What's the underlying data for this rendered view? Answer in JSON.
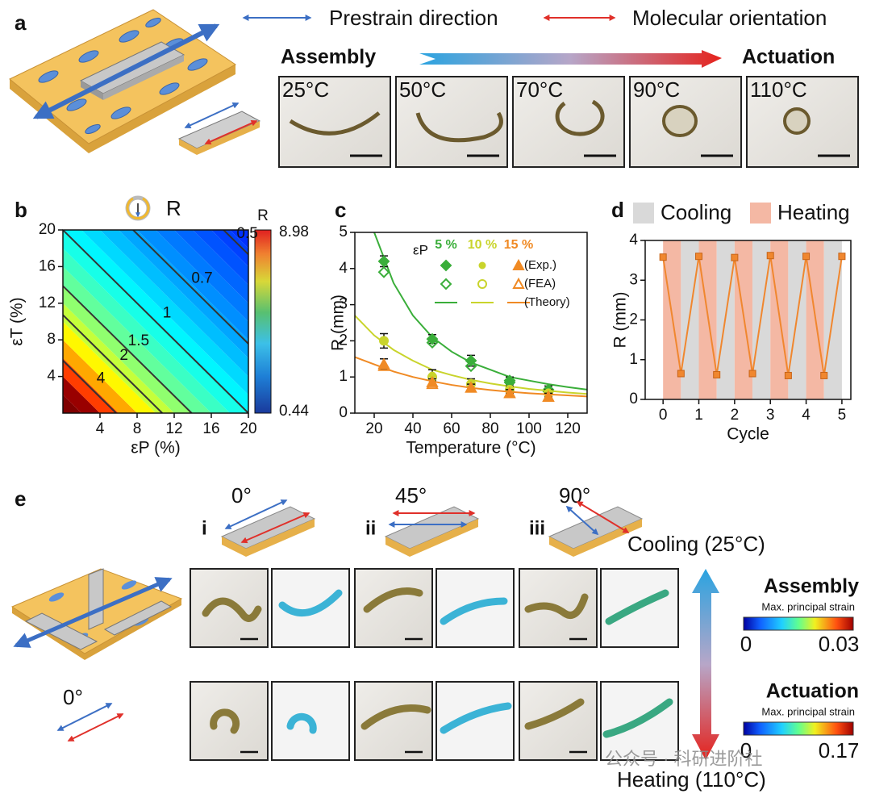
{
  "figure": {
    "a": {
      "label": "a",
      "prestrain": "Prestrain direction",
      "orientation": "Molecular orientation",
      "assembly": "Assembly",
      "actuation": "Actuation",
      "temperatures": [
        "25°C",
        "50°C",
        "70°C",
        "90°C",
        "110°C"
      ]
    },
    "b": {
      "label": "b",
      "symbol": "R"
    },
    "c": {
      "label": "c"
    },
    "d": {
      "label": "d"
    },
    "e": {
      "label": "e",
      "cases": [
        "i",
        "ii",
        "iii"
      ],
      "angles": [
        "0°",
        "45°",
        "90°"
      ],
      "cooling": "Cooling (25°C)",
      "heating": "Heating (110°C)",
      "assembly": "Assembly",
      "actuation": "Actuation",
      "strain_label": "Max. principal strain",
      "assembly_range": [
        "0",
        "0.03"
      ],
      "actuation_range": [
        "0",
        "0.17"
      ],
      "prestrain_angle": "0°"
    },
    "watermark": "公众号 · 科研进阶社"
  },
  "chart_data": [
    {
      "type": "contour",
      "colorbar_title": "R",
      "clim": [
        0.44,
        8.98
      ],
      "levels": [
        0.5,
        0.7,
        1,
        1.5,
        2,
        4
      ],
      "x_label": "εP (%)",
      "y_label": "εT (%)",
      "xlim": [
        0,
        20
      ],
      "ylim": [
        0,
        20
      ],
      "xticks": [
        4,
        8,
        12,
        16,
        20
      ],
      "yticks": [
        4,
        8,
        12,
        16,
        20
      ]
    },
    {
      "type": "line",
      "x_label": "Temperature (°C)",
      "y_label": "R (mm)",
      "xlim": [
        10,
        130
      ],
      "ylim": [
        0,
        5
      ],
      "xticks": [
        20,
        40,
        60,
        80,
        100,
        120
      ],
      "yticks": [
        0,
        1,
        2,
        3,
        4,
        5
      ],
      "legend_title": "εP",
      "legend_rows": [
        "(Exp.)",
        "(FEA)",
        "(Theory)"
      ],
      "x": [
        25,
        50,
        70,
        90,
        110
      ],
      "theory_x": [
        10,
        20,
        30,
        40,
        50,
        60,
        70,
        80,
        90,
        100,
        110,
        120,
        130
      ],
      "groups": [
        {
          "name": "5 %",
          "color": "#3aae3a",
          "exp": [
            4.2,
            2.05,
            1.45,
            0.9,
            0.65
          ],
          "errors": [
            0.15,
            0.12,
            0.15,
            0.1,
            0.1
          ],
          "fea": [
            3.9,
            1.95,
            1.3,
            0.85,
            0.6
          ],
          "theory": [
            null,
            5.0,
            3.6,
            2.7,
            2.1,
            1.7,
            1.4,
            1.2,
            1.0,
            0.9,
            0.8,
            0.72,
            0.65
          ]
        },
        {
          "name": "10 %",
          "color": "#c9d42c",
          "exp": [
            2.0,
            1.05,
            0.85,
            0.65,
            0.55
          ],
          "errors": [
            0.2,
            0.15,
            0.1,
            0.1,
            0.1
          ],
          "fea": [
            2.0,
            1.0,
            0.8,
            0.65,
            0.55
          ],
          "theory": [
            2.7,
            2.15,
            1.75,
            1.45,
            1.2,
            1.05,
            0.92,
            0.82,
            0.74,
            0.67,
            0.62,
            0.57,
            0.53
          ]
        },
        {
          "name": "15 %",
          "color": "#f08a24",
          "exp": [
            1.35,
            0.85,
            0.7,
            0.55,
            0.45
          ],
          "errors": [
            0.15,
            0.1,
            0.1,
            0.1,
            0.1
          ],
          "fea": [
            1.3,
            0.8,
            0.7,
            0.55,
            0.45
          ],
          "theory": [
            1.55,
            1.35,
            1.15,
            1.0,
            0.88,
            0.78,
            0.7,
            0.64,
            0.59,
            0.55,
            0.52,
            0.49,
            0.46
          ]
        }
      ]
    },
    {
      "type": "cycle",
      "x_label": "Cycle",
      "y_label": "R (mm)",
      "xlim": [
        -0.5,
        5.25
      ],
      "ylim": [
        0,
        4
      ],
      "xticks": [
        0,
        1,
        2,
        3,
        4,
        5
      ],
      "yticks": [
        0,
        1,
        2,
        3,
        4
      ],
      "x": [
        0,
        0.5,
        1,
        1.5,
        2,
        2.5,
        3,
        3.5,
        4,
        4.5,
        5
      ],
      "values": [
        3.58,
        0.65,
        3.6,
        0.62,
        3.57,
        0.65,
        3.62,
        0.6,
        3.6,
        0.6,
        3.6
      ],
      "color": "#f0872f",
      "bands": [
        {
          "name": "Cooling",
          "color": "#d9d9d9"
        },
        {
          "name": "Heating",
          "color": "#f4b8a4"
        }
      ]
    }
  ]
}
